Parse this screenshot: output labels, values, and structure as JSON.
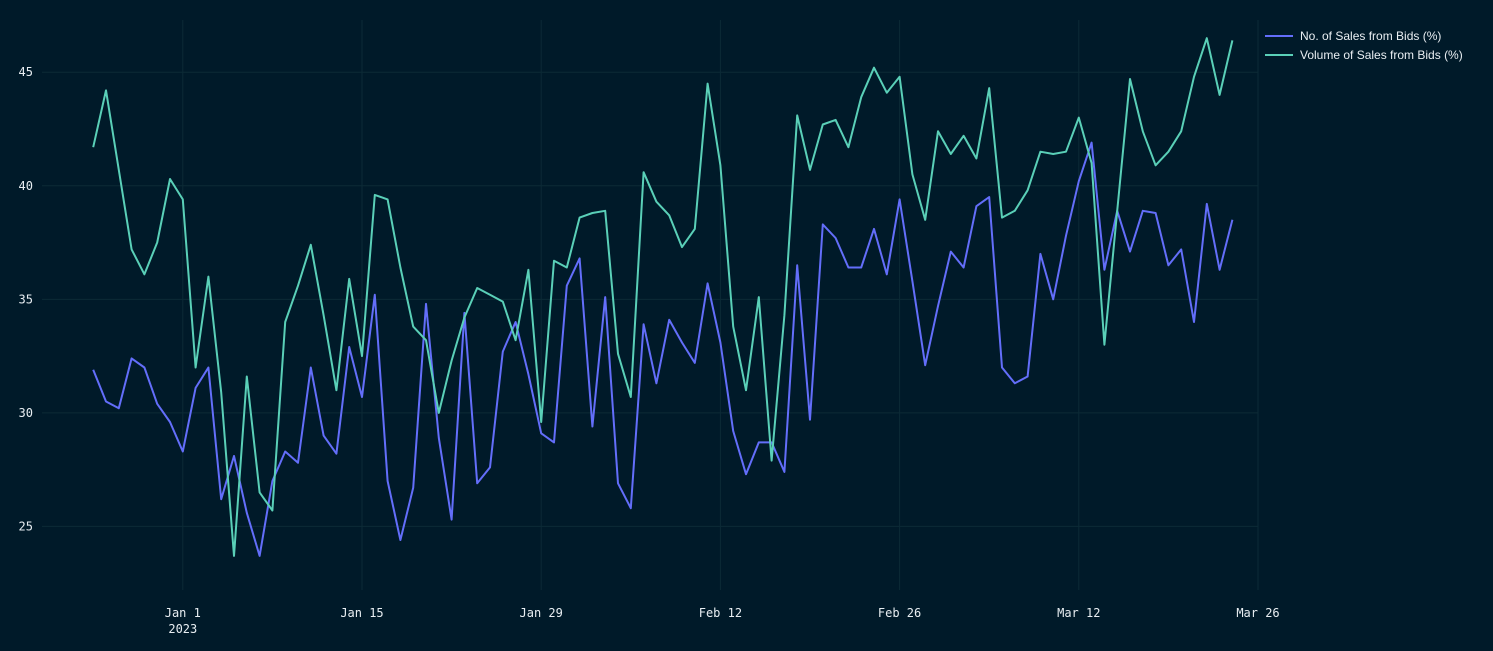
{
  "chart_data": {
    "type": "line",
    "title": "",
    "xlabel": "",
    "ylabel": "",
    "ylim": [
      22.2,
      47.3
    ],
    "x_range": [
      "2022-12-21",
      "2023-03-26"
    ],
    "x_ticks": [
      {
        "date": "2023-01-01",
        "label": "Jan 1",
        "sublabel": "2023"
      },
      {
        "date": "2023-01-15",
        "label": "Jan 15",
        "sublabel": ""
      },
      {
        "date": "2023-01-29",
        "label": "Jan 29",
        "sublabel": ""
      },
      {
        "date": "2023-02-12",
        "label": "Feb 12",
        "sublabel": ""
      },
      {
        "date": "2023-02-26",
        "label": "Feb 26",
        "sublabel": ""
      },
      {
        "date": "2023-03-12",
        "label": "Mar 12",
        "sublabel": ""
      },
      {
        "date": "2023-03-26",
        "label": "Mar 26",
        "sublabel": ""
      }
    ],
    "y_ticks": [
      25,
      30,
      35,
      40,
      45
    ],
    "x_start": "2022-12-25",
    "grid": true,
    "legend_position": "top-right",
    "series": [
      {
        "name": "No. of Sales from Bids (%)",
        "color": "#636efa",
        "values": [
          31.9,
          30.5,
          30.2,
          32.4,
          32.0,
          30.4,
          29.6,
          28.3,
          31.1,
          32.0,
          26.2,
          28.1,
          25.6,
          23.7,
          27.0,
          28.3,
          27.8,
          32.0,
          29.0,
          28.2,
          32.9,
          30.7,
          35.2,
          27.0,
          24.4,
          26.7,
          34.8,
          28.9,
          25.3,
          34.4,
          26.9,
          27.6,
          32.7,
          34.0,
          31.7,
          29.1,
          28.7,
          35.6,
          36.8,
          29.4,
          35.1,
          26.9,
          25.8,
          33.9,
          31.3,
          34.1,
          33.1,
          32.2,
          35.7,
          33.1,
          29.2,
          27.3,
          28.7,
          28.7,
          27.4,
          36.5,
          29.7,
          38.3,
          37.7,
          36.4,
          36.4,
          38.1,
          36.1,
          39.4,
          35.8,
          32.1,
          34.7,
          37.1,
          36.4,
          39.1,
          39.5,
          32.0,
          31.3,
          31.6,
          37.0,
          35.0,
          37.8,
          40.2,
          41.9,
          36.3,
          38.9,
          37.1,
          38.9,
          38.8,
          36.5,
          37.2,
          34.0,
          39.2,
          36.3,
          38.5
        ]
      },
      {
        "name": "Volume of Sales from Bids (%)",
        "color": "#5ad0b8",
        "values": [
          41.7,
          44.2,
          40.7,
          37.2,
          36.1,
          37.5,
          40.3,
          39.4,
          32.0,
          36.0,
          30.9,
          23.7,
          31.6,
          26.5,
          25.7,
          34.0,
          35.6,
          37.4,
          34.3,
          31.0,
          35.9,
          32.5,
          39.6,
          39.4,
          36.4,
          33.8,
          33.2,
          30.0,
          32.3,
          34.2,
          35.5,
          35.2,
          34.9,
          33.2,
          36.3,
          29.6,
          36.7,
          36.4,
          38.6,
          38.8,
          38.9,
          32.6,
          30.7,
          40.6,
          39.3,
          38.7,
          37.3,
          38.1,
          44.5,
          40.9,
          33.8,
          31.0,
          35.1,
          27.9,
          34.3,
          43.1,
          40.7,
          42.7,
          42.9,
          41.7,
          43.9,
          45.2,
          44.1,
          44.8,
          40.5,
          38.5,
          42.4,
          41.4,
          42.2,
          41.2,
          44.3,
          38.6,
          38.9,
          39.8,
          41.5,
          41.4,
          41.5,
          43.0,
          41.0,
          33.0,
          38.9,
          44.7,
          42.4,
          40.9,
          41.5,
          42.4,
          44.8,
          46.5,
          44.0,
          46.4
        ]
      }
    ]
  }
}
